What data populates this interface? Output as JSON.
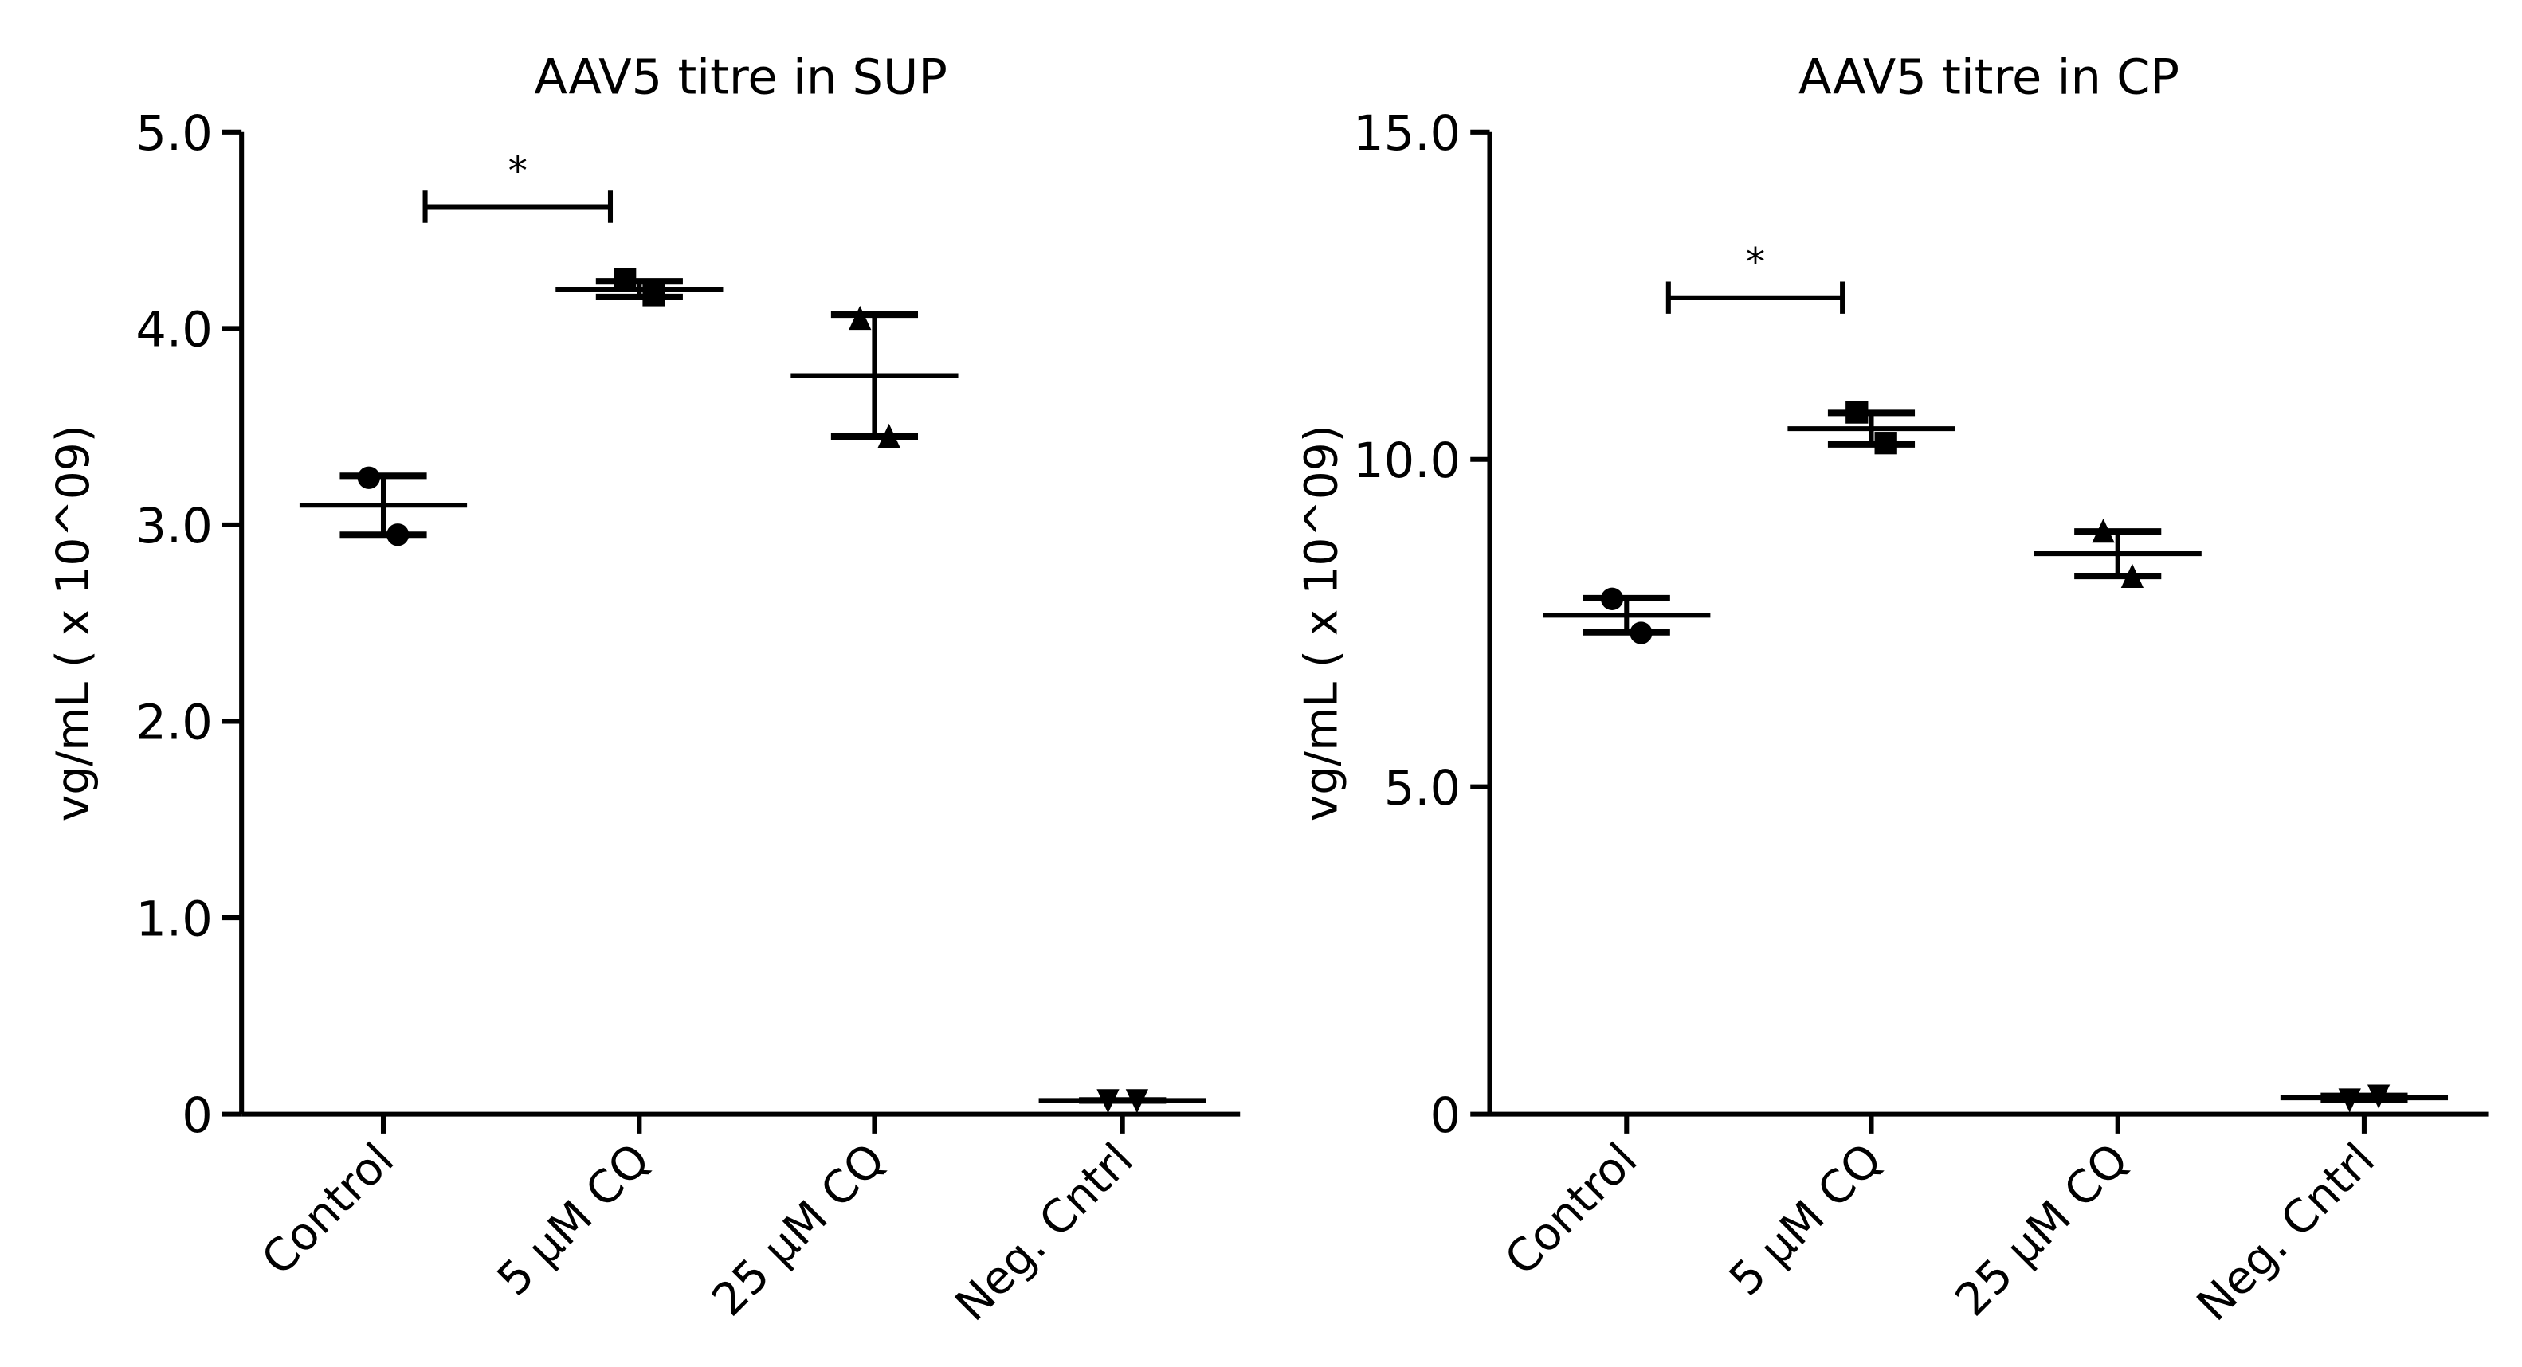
{
  "chart_data": [
    {
      "type": "dotplot",
      "title": "AAV5 titre in SUP",
      "ylabel": "vg/mL ( x 10^09)",
      "categories": [
        "Control",
        "5 µM CQ",
        "25 µM CQ",
        "Neg. Cntrl"
      ],
      "markers": [
        "circle",
        "square",
        "triangle",
        "triangle-down"
      ],
      "color": "#000000",
      "values": [
        [
          3.24,
          2.95
        ],
        [
          4.25,
          4.17
        ],
        [
          4.05,
          3.45
        ],
        [
          0.07,
          0.07
        ]
      ],
      "means": [
        3.1,
        4.2,
        3.76,
        0.07
      ],
      "errors": [
        0.15,
        0.04,
        0.31,
        0.0
      ],
      "ylim": [
        0,
        5
      ],
      "yticks": [
        0,
        {
          "value": 1,
          "label": "1.0"
        },
        {
          "value": 2,
          "label": "2.0"
        },
        {
          "value": 3,
          "label": "3.0"
        },
        {
          "value": 4,
          "label": "4.0"
        },
        {
          "value": 5,
          "label": "5.0"
        }
      ],
      "annotations": [
        {
          "text": "*",
          "from": "Control",
          "to": "5 µM CQ",
          "y": 4.62
        }
      ]
    },
    {
      "type": "dotplot",
      "title": "AAV5 titre in CP",
      "ylabel": "vg/mL ( x 10^09)",
      "categories": [
        "Control",
        "5 µM CQ",
        "25 µM CQ",
        "Neg. Cntrl"
      ],
      "markers": [
        "circle",
        "square",
        "triangle",
        "triangle-down"
      ],
      "color": "#000000",
      "values": [
        [
          7.87,
          7.35
        ],
        [
          10.72,
          10.25
        ],
        [
          8.9,
          8.21
        ],
        [
          0.22,
          0.28
        ]
      ],
      "means": [
        7.62,
        10.47,
        8.56,
        0.25
      ],
      "errors": [
        0.26,
        0.24,
        0.34,
        0.03
      ],
      "ylim": [
        0,
        15
      ],
      "yticks": [
        0,
        {
          "value": 5,
          "label": "5.0"
        },
        {
          "value": 10,
          "label": "10.0"
        },
        {
          "value": 15,
          "label": "15.0"
        }
      ],
      "annotations": [
        {
          "text": "*",
          "from": "Control",
          "to": "5 µM CQ",
          "y": 12.47
        }
      ]
    }
  ]
}
